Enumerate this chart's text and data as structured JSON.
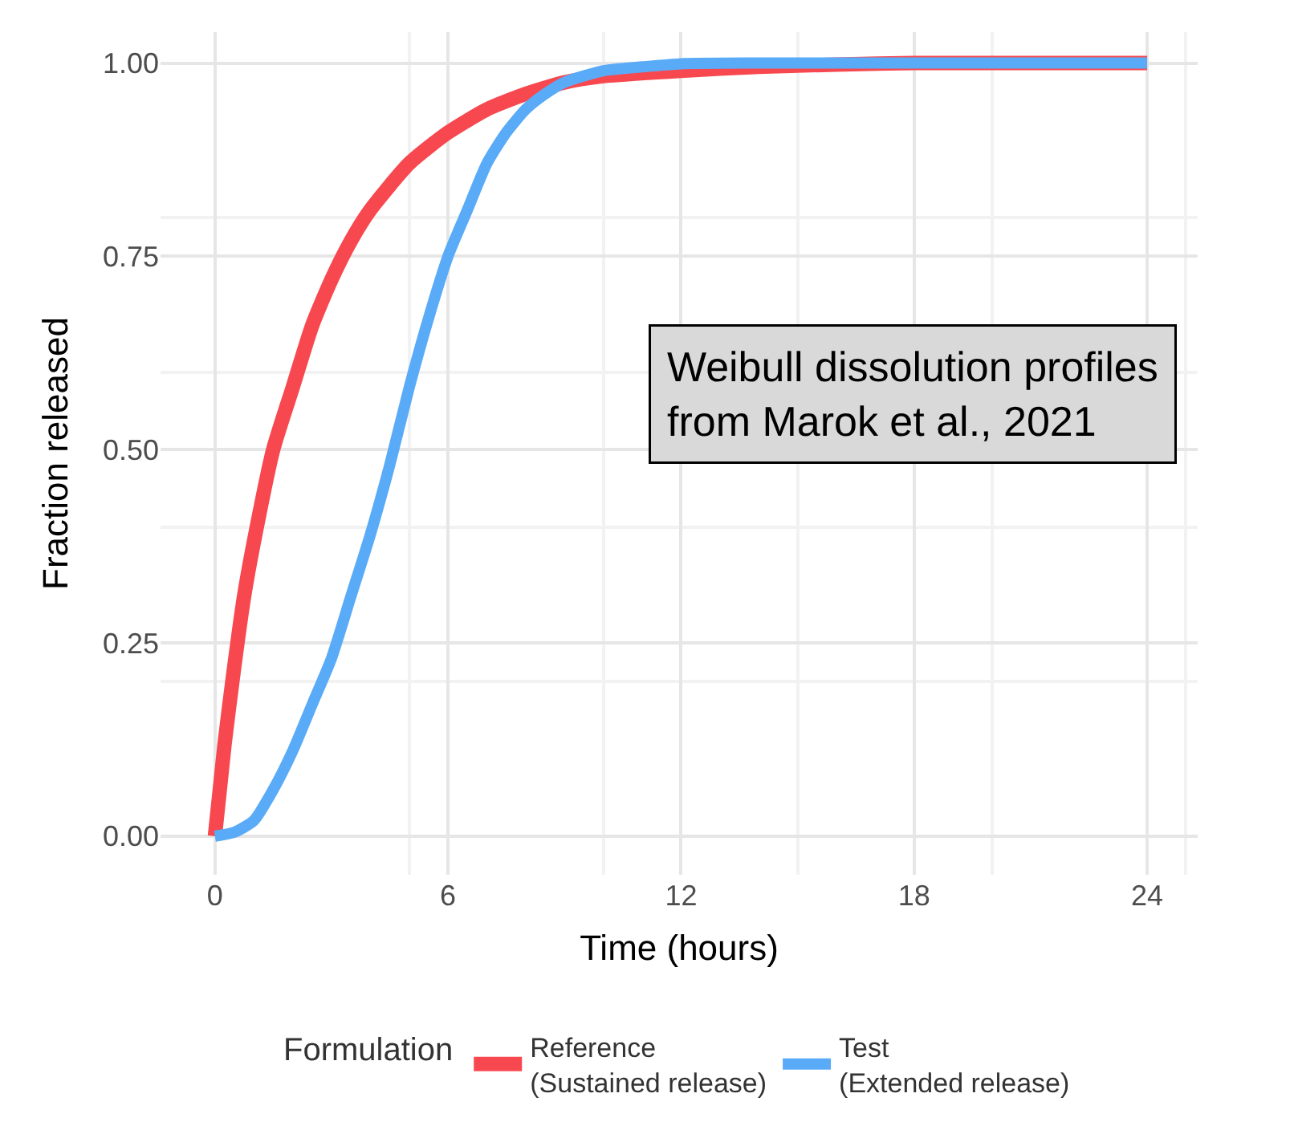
{
  "chart_data": {
    "type": "line",
    "xlabel": "Time (hours)",
    "ylabel": "Fraction released",
    "legend_title": "Formulation",
    "legend": "bottom",
    "grid": true,
    "marker": "none",
    "line_style": "solid",
    "xlim": [
      -1.4,
      25.3
    ],
    "ylim": [
      -0.05,
      1.04
    ],
    "xticks": [
      0,
      6,
      12,
      18,
      24
    ],
    "yticks": [
      {
        "value": 0,
        "label": "0.00"
      },
      {
        "value": 0.25,
        "label": "0.25"
      },
      {
        "value": 0.5,
        "label": "0.50"
      },
      {
        "value": 0.75,
        "label": "0.75"
      },
      {
        "value": 1,
        "label": "1.00"
      }
    ],
    "annotations": [
      "Weibull dissolution profiles\nfrom Marok et al., 2021"
    ],
    "series": [
      {
        "name": "Reference\n(Sustained release)",
        "color": "#f8484f",
        "x": [
          0,
          0.25,
          0.5,
          0.75,
          1,
          1.5,
          2,
          2.5,
          3,
          3.5,
          4,
          5,
          6,
          7,
          8,
          9,
          10,
          12,
          14,
          16,
          18,
          24
        ],
        "values": [
          0,
          0.12,
          0.22,
          0.31,
          0.38,
          0.5,
          0.58,
          0.66,
          0.72,
          0.77,
          0.81,
          0.87,
          0.91,
          0.94,
          0.96,
          0.975,
          0.983,
          0.99,
          0.995,
          0.998,
          1.0,
          1.0
        ]
      },
      {
        "name": "Test\n(Extended release)",
        "color": "#5aabf7",
        "x": [
          0,
          0.5,
          1,
          1.5,
          2,
          2.5,
          3,
          3.5,
          4,
          4.5,
          5,
          5.5,
          6,
          6.5,
          7,
          7.5,
          8,
          8.5,
          9,
          10,
          11,
          12,
          14,
          24
        ],
        "values": [
          0,
          0.005,
          0.02,
          0.06,
          0.11,
          0.17,
          0.23,
          0.31,
          0.39,
          0.48,
          0.58,
          0.67,
          0.75,
          0.81,
          0.87,
          0.91,
          0.94,
          0.96,
          0.975,
          0.99,
          0.995,
          0.999,
          1.0,
          1.0
        ]
      }
    ]
  }
}
